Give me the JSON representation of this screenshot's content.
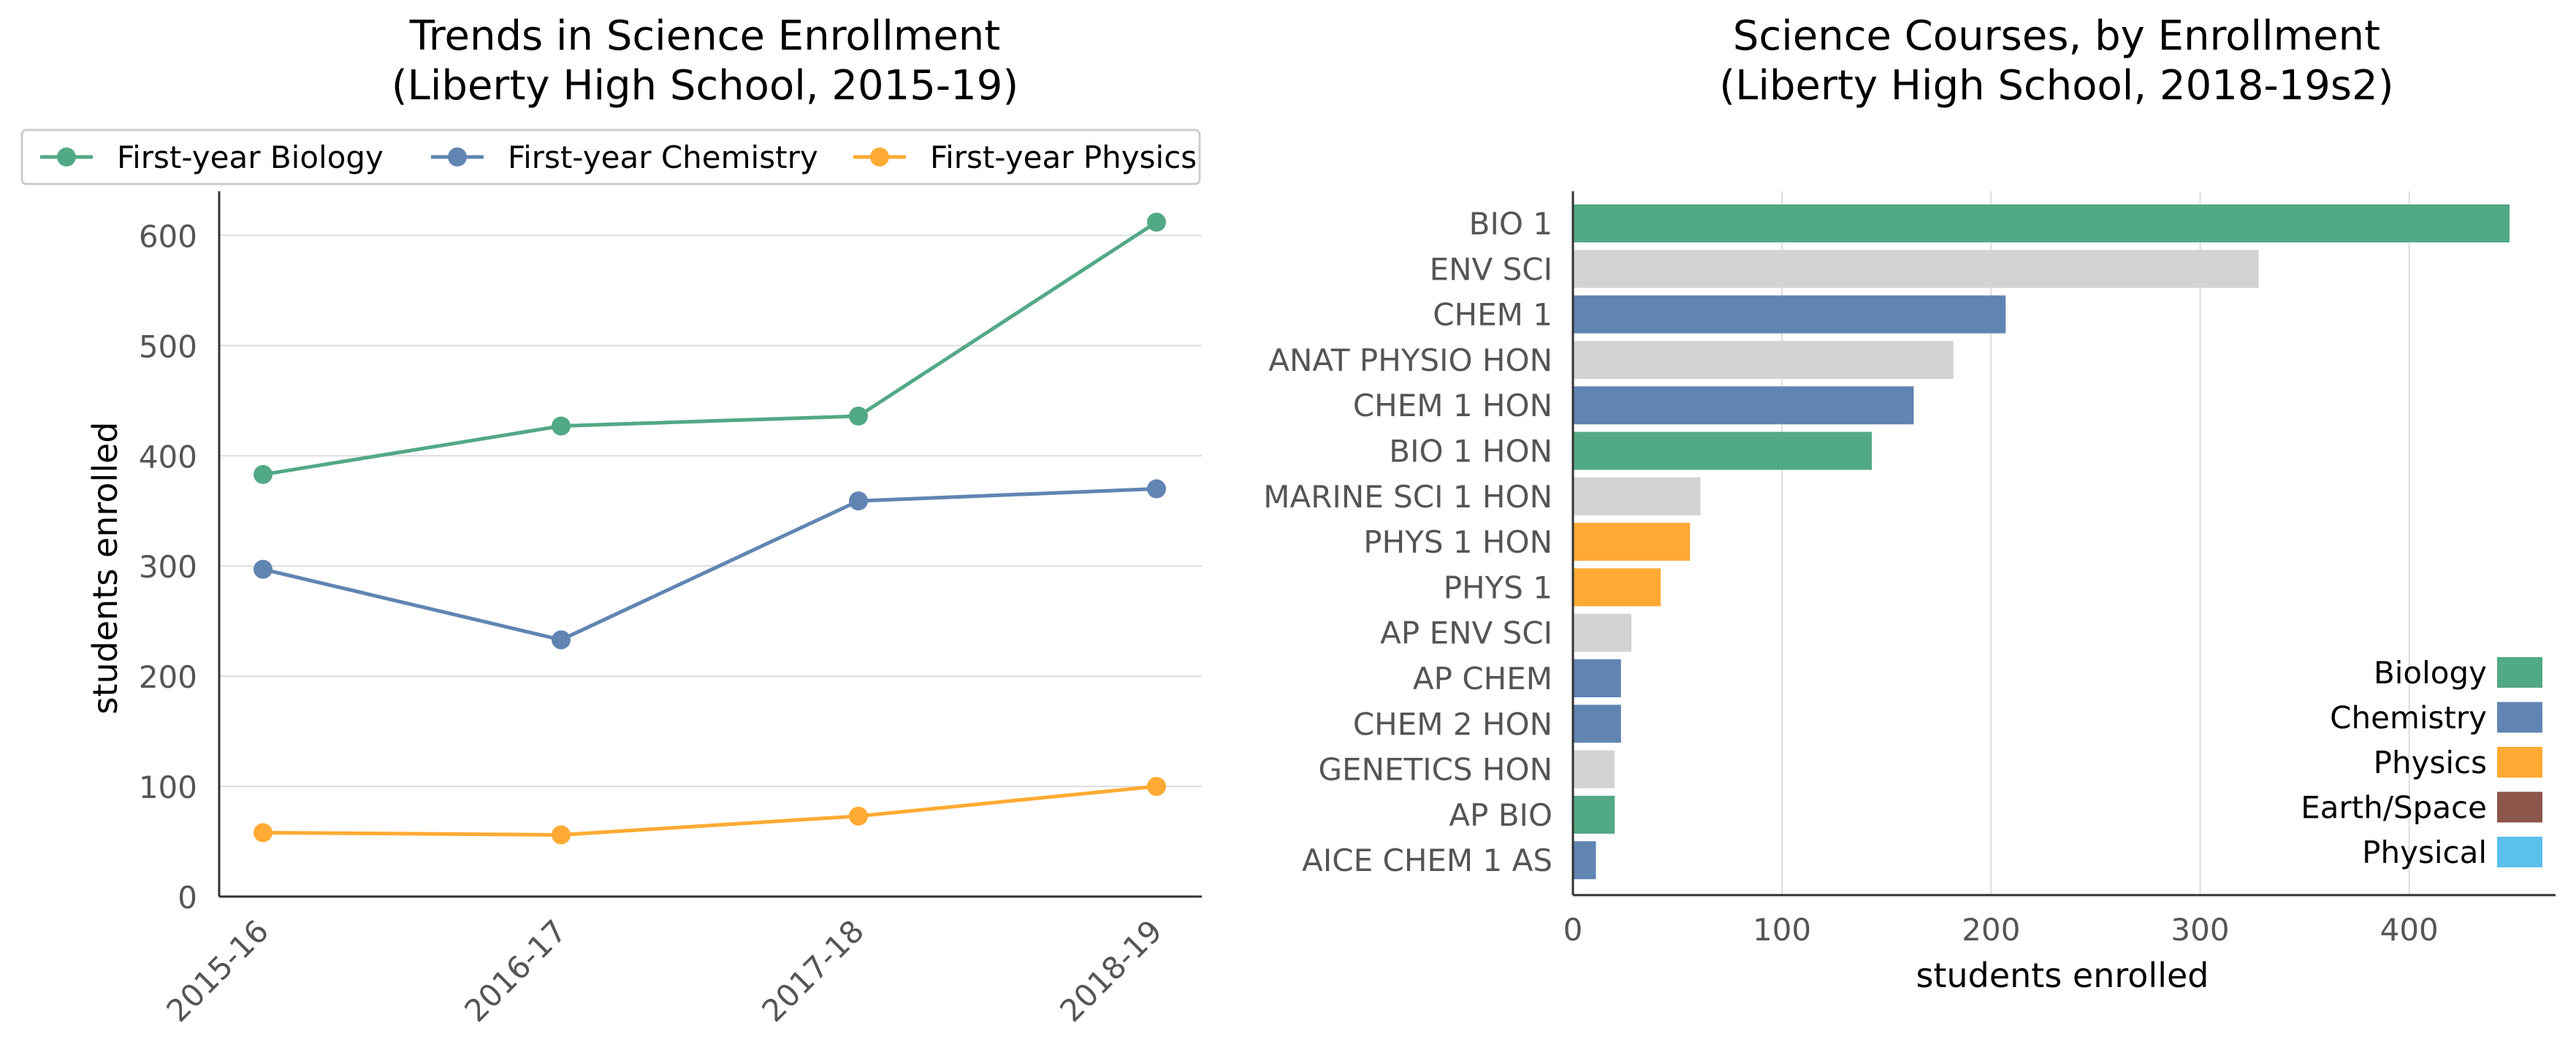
{
  "colors": {
    "biology": "#52a985",
    "chemistry": "#6185b3",
    "physics": "#ffaa33",
    "earth_space": "#8c564b",
    "physical": "#5bc0eb",
    "other": "#d3d3d3",
    "text": "#000000",
    "tick_text": "#555555",
    "grid": "#dddddd",
    "axis": "#333333"
  },
  "chart_data": [
    {
      "type": "line",
      "title_line1": "Trends in Science Enrollment",
      "title_line2": "(Liberty High School, 2015-19)",
      "xlabel": "",
      "ylabel": "students enrolled",
      "categories": [
        "2015-16",
        "2016-17",
        "2017-18",
        "2018-19"
      ],
      "ylim": [
        0,
        640
      ],
      "yticks": [
        0,
        100,
        200,
        300,
        400,
        500,
        600
      ],
      "grid": "horizontal",
      "legend_position": "top",
      "series": [
        {
          "name": "First-year Biology",
          "color": "#52a985",
          "values": [
            383,
            427,
            436,
            612
          ]
        },
        {
          "name": "First-year Chemistry",
          "color": "#6185b3",
          "values": [
            297,
            233,
            359,
            370
          ]
        },
        {
          "name": "First-year Physics",
          "color": "#ffaa33",
          "values": [
            58,
            56,
            73,
            100
          ]
        }
      ]
    },
    {
      "type": "bar",
      "orientation": "horizontal",
      "title_line1": "Science Courses, by Enrollment",
      "title_line2": "(Liberty High School, 2018-19s2)",
      "xlabel": "students enrolled",
      "ylabel": "",
      "xlim": [
        0,
        470
      ],
      "xticks": [
        0,
        100,
        200,
        300,
        400
      ],
      "grid": "vertical",
      "legend_position": "bottom-right",
      "categories": [
        "BIO 1",
        "ENV SCI",
        "CHEM 1",
        "ANAT PHYSIO HON",
        "CHEM 1 HON",
        "BIO 1 HON",
        "MARINE SCI 1 HON",
        "PHYS 1 HON",
        "PHYS 1",
        "AP ENV SCI",
        "AP CHEM",
        "CHEM 2 HON",
        "GENETICS HON",
        "AP BIO",
        "AICE CHEM 1 AS"
      ],
      "values": [
        448,
        328,
        207,
        182,
        163,
        143,
        61,
        56,
        42,
        28,
        23,
        23,
        20,
        20,
        11
      ],
      "bar_groups": [
        "biology",
        "other",
        "chemistry",
        "other",
        "chemistry",
        "biology",
        "other",
        "physics",
        "physics",
        "other",
        "chemistry",
        "chemistry",
        "other",
        "biology",
        "chemistry"
      ],
      "legend": [
        {
          "label": "Biology",
          "group": "biology"
        },
        {
          "label": "Chemistry",
          "group": "chemistry"
        },
        {
          "label": "Physics",
          "group": "physics"
        },
        {
          "label": "Earth/Space",
          "group": "earth_space"
        },
        {
          "label": "Physical",
          "group": "physical"
        }
      ]
    }
  ]
}
